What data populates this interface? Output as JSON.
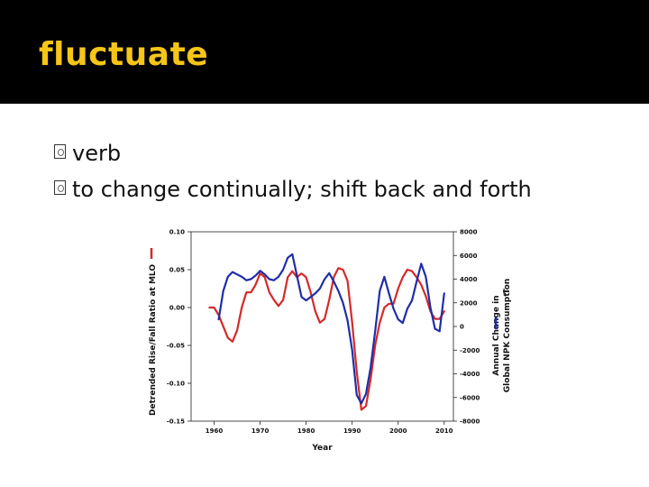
{
  "slide": {
    "title": "fluctuate",
    "bullets": [
      "verb",
      "to change continually; shift back and forth"
    ]
  },
  "colors": {
    "title_bar": "#000000",
    "title_text": "#f5c518",
    "red_series": "#d42a2a",
    "blue_series": "#1f2ea8"
  },
  "chart_data": {
    "type": "line",
    "xlabel": "Year",
    "ylabel_left": "Detrended Rise/Fall Ratio at MLO",
    "ylabel_right_line1": "Annual Change in",
    "ylabel_right_line2": "Global NPK Consumption",
    "ylabel_right_unit": "T",
    "xlim": [
      1955,
      2012
    ],
    "ylim_left": [
      -0.15,
      0.1
    ],
    "ylim_right": [
      -8000,
      8000
    ],
    "x_ticks": [
      1960,
      1970,
      1980,
      1990,
      2000,
      2010
    ],
    "x_tick_labels": [
      "1960",
      "1970",
      "1980",
      "1990",
      "2000",
      "2010"
    ],
    "y_left_ticks": [
      0.1,
      0.05,
      0.0,
      -0.05,
      -0.1,
      -0.15
    ],
    "y_left_tick_labels": [
      "0.10",
      "0.05",
      "0.00",
      "-0.05",
      "-0.10",
      "-0.15"
    ],
    "y_right_ticks": [
      8000,
      6000,
      4000,
      2000,
      0,
      -2000,
      -4000,
      -6000,
      -8000
    ],
    "y_right_tick_labels": [
      "8000",
      "6000",
      "4000",
      "2000",
      "0",
      "-2000",
      "-4000",
      "-6000",
      "-8000"
    ],
    "grid": false,
    "series": [
      {
        "axis": "left",
        "color": "#d42a2a",
        "x": [
          1959,
          1960,
          1961,
          1962,
          1963,
          1964,
          1965,
          1966,
          1967,
          1968,
          1969,
          1970,
          1971,
          1972,
          1973,
          1974,
          1975,
          1976,
          1977,
          1978,
          1979,
          1980,
          1981,
          1982,
          1983,
          1984,
          1985,
          1986,
          1987,
          1988,
          1989,
          1990,
          1991,
          1992,
          1993,
          1994,
          1995,
          1996,
          1997,
          1998,
          1999,
          2000,
          2001,
          2002,
          2003,
          2004,
          2005,
          2006,
          2007,
          2008,
          2009,
          2010
        ],
        "y": [
          0.0,
          0.0,
          -0.01,
          -0.025,
          -0.04,
          -0.045,
          -0.03,
          0.0,
          0.02,
          0.02,
          0.03,
          0.045,
          0.04,
          0.02,
          0.01,
          0.002,
          0.01,
          0.04,
          0.048,
          0.04,
          0.045,
          0.04,
          0.02,
          -0.005,
          -0.02,
          -0.015,
          0.01,
          0.04,
          0.052,
          0.05,
          0.035,
          -0.02,
          -0.085,
          -0.135,
          -0.13,
          -0.095,
          -0.05,
          -0.02,
          0.0,
          0.005,
          0.005,
          0.025,
          0.04,
          0.05,
          0.048,
          0.04,
          0.03,
          0.015,
          -0.005,
          -0.015,
          -0.015,
          -0.005
        ]
      },
      {
        "axis": "right",
        "color": "#1f2ea8",
        "x": [
          1961,
          1962,
          1963,
          1964,
          1965,
          1966,
          1967,
          1968,
          1969,
          1970,
          1971,
          1972,
          1973,
          1974,
          1975,
          1976,
          1977,
          1978,
          1979,
          1980,
          1981,
          1982,
          1983,
          1984,
          1985,
          1986,
          1987,
          1988,
          1989,
          1990,
          1991,
          1992,
          1993,
          1994,
          1995,
          1996,
          1997,
          1998,
          1999,
          2000,
          2001,
          2002,
          2003,
          2004,
          2005,
          2006,
          2007,
          2008,
          2009,
          2010
        ],
        "y": [
          600,
          3000,
          4200,
          4600,
          4400,
          4200,
          3900,
          4000,
          4300,
          4700,
          4400,
          4000,
          3900,
          4200,
          4800,
          5800,
          6100,
          4300,
          2500,
          2200,
          2500,
          2800,
          3200,
          4000,
          4500,
          3800,
          3000,
          2000,
          500,
          -2000,
          -5800,
          -6500,
          -5700,
          -3500,
          -400,
          3000,
          4200,
          2800,
          1500,
          600,
          300,
          1500,
          2200,
          3800,
          5300,
          4200,
          1600,
          -200,
          -400,
          2800
        ]
      }
    ]
  }
}
